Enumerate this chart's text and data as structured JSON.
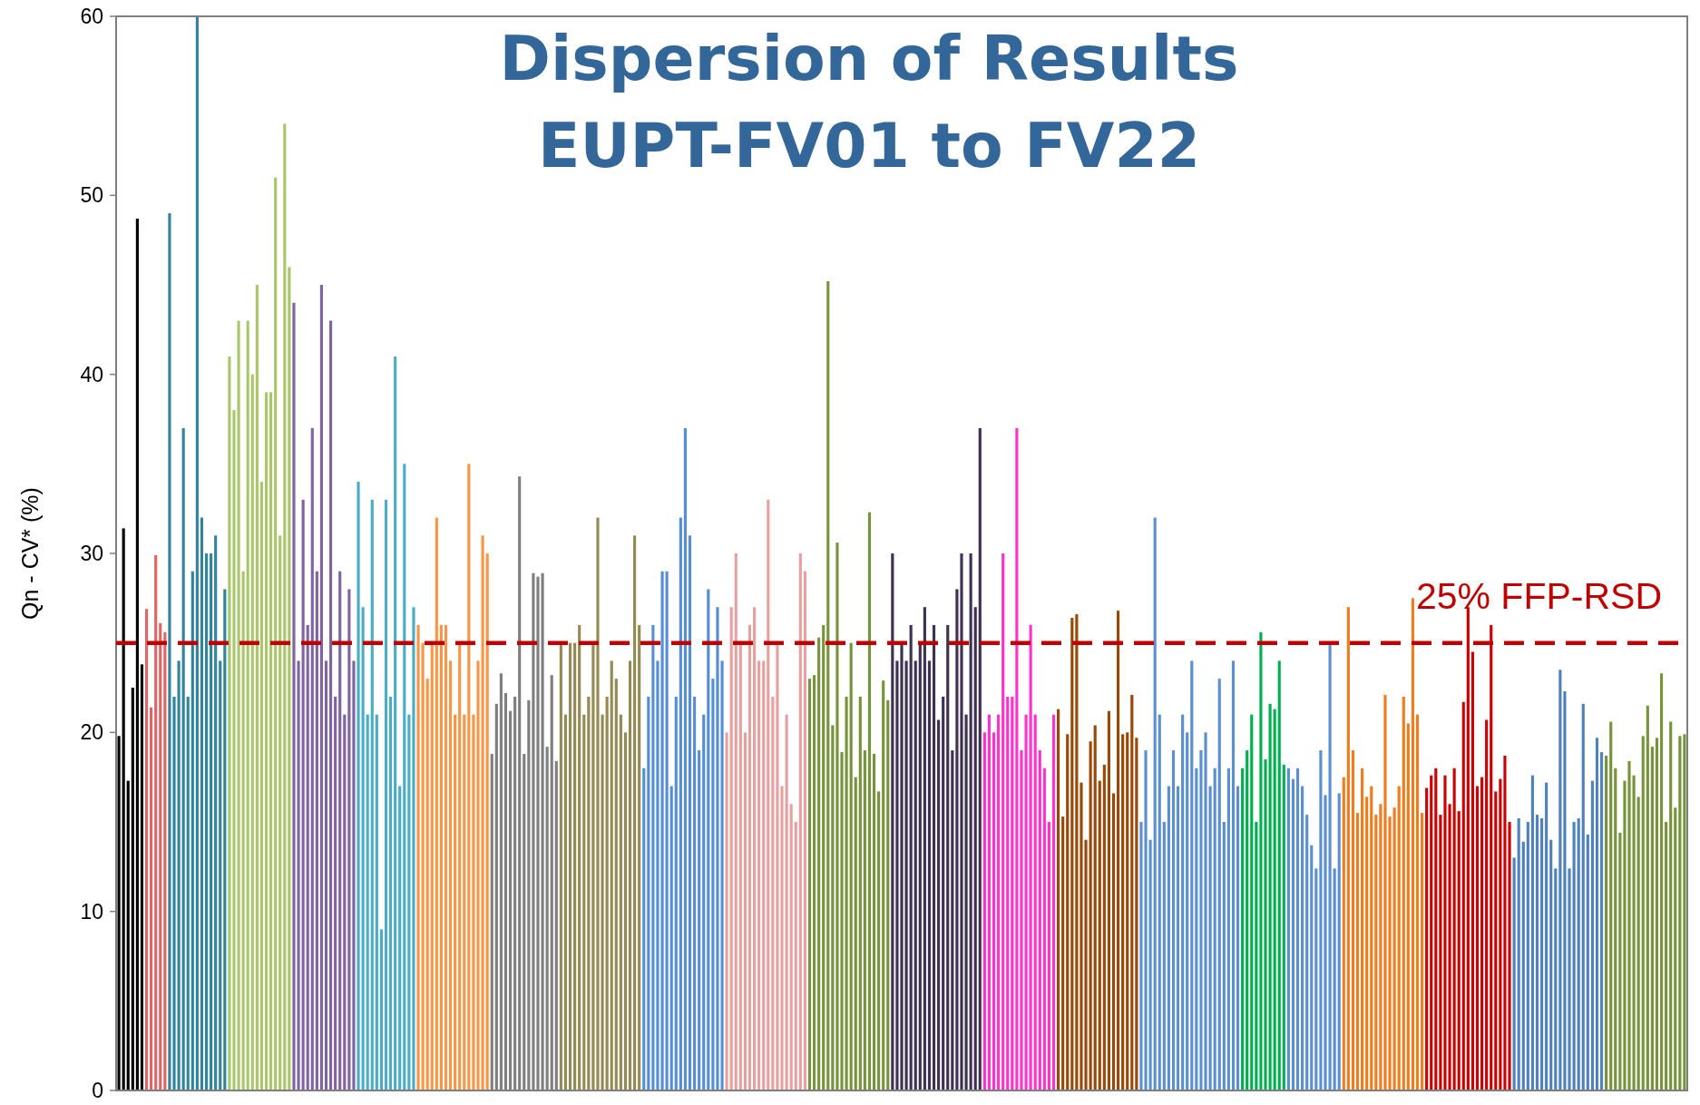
{
  "chart_data": {
    "type": "bar",
    "title": "Dispersion of Results\nEUPT-FV01 to FV22",
    "ylabel": "Qn - CV* (%)",
    "ylim": [
      0,
      60
    ],
    "yticks": [
      0,
      10,
      20,
      30,
      40,
      50,
      60
    ],
    "grid": false,
    "categories": [
      null,
      null,
      null,
      null,
      null,
      null,
      null,
      null,
      null,
      null,
      null,
      null,
      null,
      null,
      null,
      null,
      null,
      null,
      null,
      null,
      null,
      null,
      null,
      null,
      null,
      null,
      null,
      null,
      null,
      null,
      null,
      null,
      null,
      null,
      null,
      null,
      null,
      null,
      null,
      null,
      null,
      null,
      null,
      null,
      null,
      null,
      null,
      null,
      null,
      null,
      null,
      null,
      null,
      null,
      null,
      null,
      null,
      null,
      null,
      null,
      null,
      null,
      null,
      null,
      null,
      null,
      null,
      null,
      null,
      null,
      null,
      null,
      null,
      null,
      null,
      null,
      null,
      null,
      null,
      null,
      null,
      null,
      null,
      null,
      null,
      null,
      null,
      null,
      null,
      null,
      null,
      null,
      null,
      null,
      null,
      null,
      null,
      null,
      null,
      null,
      null,
      null,
      null,
      null,
      null,
      null,
      null,
      null,
      null,
      null,
      null,
      null,
      null,
      null,
      null,
      null,
      null,
      null,
      null,
      null,
      null,
      null,
      null,
      null,
      null,
      null,
      null,
      null,
      null,
      null,
      null,
      null,
      null,
      null,
      null,
      null,
      null,
      null,
      null,
      null,
      null,
      null,
      null,
      null,
      null,
      null,
      null,
      null,
      null,
      null,
      null,
      null,
      null,
      null,
      null,
      null,
      null,
      null,
      null,
      null,
      null,
      null,
      null,
      null,
      null,
      null,
      null,
      null,
      null,
      null,
      null,
      null,
      null,
      null,
      null,
      null,
      null,
      null,
      null,
      null,
      null,
      null,
      null,
      null,
      null,
      null,
      null,
      null,
      null,
      null,
      null,
      null,
      null,
      null,
      null,
      null,
      null,
      null,
      null,
      null,
      null,
      null,
      null,
      null,
      null,
      null,
      null,
      null,
      null,
      null,
      null,
      null,
      null,
      null,
      null,
      null,
      null,
      null,
      null,
      null,
      null,
      null,
      null,
      null,
      null,
      null,
      null,
      null,
      null,
      null,
      null,
      null,
      null,
      null,
      null,
      null,
      null,
      null,
      null,
      null,
      null,
      null,
      null,
      null,
      null,
      null,
      null,
      null,
      null,
      null,
      null,
      null,
      null,
      null,
      null,
      null,
      null,
      null,
      null,
      null,
      null,
      null,
      null,
      null,
      null,
      null,
      null,
      null,
      null,
      null,
      null,
      null,
      null,
      null,
      null,
      null,
      null,
      null,
      null,
      null,
      null,
      null,
      null,
      null,
      null,
      null,
      null,
      null,
      null,
      null,
      null,
      null,
      null,
      null,
      null,
      null,
      null,
      null,
      null,
      null,
      null,
      null,
      null,
      null,
      null,
      null,
      null,
      null,
      null,
      null,
      null,
      null,
      null,
      null,
      null,
      null,
      null,
      null,
      null,
      null,
      null,
      null,
      null,
      null,
      null,
      null,
      null,
      null,
      null,
      null,
      null,
      null,
      null,
      null,
      null,
      null,
      null,
      null,
      null,
      null,
      null
    ],
    "values": [
      19.8,
      31.4,
      17.3,
      22.5,
      48.7,
      23.8,
      26.9,
      21.4,
      29.9,
      26.1,
      25.6,
      49,
      22,
      24,
      37,
      22,
      29,
      60,
      32,
      30,
      30,
      31,
      24,
      28,
      41,
      38,
      43,
      29,
      43,
      40,
      45,
      34,
      39,
      39,
      51,
      31,
      54,
      46,
      44,
      24,
      33,
      26,
      37,
      29,
      45,
      24,
      43,
      22,
      29,
      21,
      28,
      24,
      34,
      27,
      21,
      33,
      21,
      9,
      33,
      22,
      41,
      17,
      35,
      21,
      27,
      26,
      25,
      23,
      25,
      32,
      26,
      26,
      24,
      21,
      25,
      21,
      35,
      21,
      24,
      31,
      30,
      18.8,
      21.6,
      23.3,
      22.2,
      21.2,
      22,
      34.3,
      18.8,
      21.8,
      28.9,
      28.7,
      28.9,
      19.2,
      23.2,
      18.4,
      25,
      21,
      25,
      25,
      26,
      21,
      22,
      25,
      32,
      21,
      22,
      24,
      23,
      21,
      20,
      24,
      31,
      26,
      18,
      22,
      26,
      24,
      29,
      29,
      17,
      22,
      32,
      37,
      31,
      22,
      19,
      21,
      28,
      23,
      27,
      24,
      20,
      27,
      30,
      25,
      20,
      26,
      27,
      24,
      24,
      33,
      22,
      25,
      17,
      21,
      16,
      15,
      30,
      29,
      23,
      23.2,
      25.3,
      26,
      45.2,
      20.4,
      30.6,
      18.9,
      22,
      25,
      17.5,
      22,
      19,
      32.3,
      18.8,
      16.7,
      22.9,
      21.8,
      30,
      24,
      25,
      24,
      26,
      24,
      25,
      27,
      24,
      26,
      20.7,
      22,
      26,
      19,
      28,
      30,
      21,
      30,
      27,
      37,
      20,
      21,
      20,
      21,
      30,
      22,
      22,
      37,
      19,
      21,
      26,
      21,
      19,
      18,
      15,
      21,
      21.3,
      15.3,
      19.9,
      26.4,
      26.6,
      17.2,
      14,
      19.5,
      20.4,
      17.3,
      18.2,
      21.2,
      16.6,
      26.8,
      19.9,
      20,
      22.1,
      19.7,
      15,
      19,
      14,
      32,
      21,
      15,
      17,
      19,
      17,
      21,
      20,
      24,
      18,
      19,
      20,
      17,
      18,
      23,
      15,
      18,
      24,
      17,
      18,
      19,
      21,
      15,
      25.6,
      18.5,
      21.6,
      21.3,
      24,
      18.2,
      18,
      17.4,
      18,
      17,
      15.4,
      13.7,
      12.4,
      19,
      16.5,
      25,
      12.4,
      16.6,
      17.5,
      27,
      19,
      15.5,
      18,
      16.4,
      17,
      15.4,
      16,
      22.1,
      15.3,
      15.8,
      17,
      22,
      20.5,
      27.5,
      21,
      15.5,
      16.9,
      17.6,
      18,
      15.4,
      17.6,
      16,
      18,
      15.6,
      21.7,
      27,
      24.5,
      17,
      17.5,
      20.7,
      26,
      16.7,
      17.4,
      18.7,
      15,
      13,
      15.2,
      13.9,
      15,
      17.6,
      15.4,
      15.2,
      17.2,
      14,
      12.4,
      23.5,
      22.3,
      12.4,
      15,
      15.2,
      21.6,
      14.3,
      17.3,
      19.7,
      18.9,
      18.7,
      20.6,
      18,
      14.4,
      17.3,
      18.4,
      17.6,
      16.4,
      19.8,
      21.5,
      19.2,
      19.7,
      23.3,
      15,
      20.6,
      15.8,
      19.8,
      19.9
    ],
    "colors": [
      "#000000",
      "#000000",
      "#000000",
      "#000000",
      "#000000",
      "#000000",
      "#e06666",
      "#e06666",
      "#e06666",
      "#e06666",
      "#e06666",
      "#31849b",
      "#31849b",
      "#31849b",
      "#31849b",
      "#31849b",
      "#31849b",
      "#31849b",
      "#31849b",
      "#31849b",
      "#31849b",
      "#31849b",
      "#31849b",
      "#31849b",
      "#a9c76a",
      "#a9c76a",
      "#a9c76a",
      "#a9c76a",
      "#a9c76a",
      "#a9c76a",
      "#a9c76a",
      "#a9c76a",
      "#a9c76a",
      "#a9c76a",
      "#a9c76a",
      "#a9c76a",
      "#a9c76a",
      "#a9c76a",
      "#8064a2",
      "#8064a2",
      "#8064a2",
      "#8064a2",
      "#8064a2",
      "#8064a2",
      "#8064a2",
      "#8064a2",
      "#8064a2",
      "#8064a2",
      "#8064a2",
      "#8064a2",
      "#8064a2",
      "#8064a2",
      "#4bacc6",
      "#4bacc6",
      "#4bacc6",
      "#4bacc6",
      "#4bacc6",
      "#4bacc6",
      "#4bacc6",
      "#4bacc6",
      "#4bacc6",
      "#4bacc6",
      "#4bacc6",
      "#4bacc6",
      "#4bacc6",
      "#f79646",
      "#f79646",
      "#f79646",
      "#f79646",
      "#f79646",
      "#f79646",
      "#f79646",
      "#f79646",
      "#f79646",
      "#f79646",
      "#f79646",
      "#f79646",
      "#f79646",
      "#f79646",
      "#f79646",
      "#f79646",
      "#7f7f7f",
      "#7f7f7f",
      "#7f7f7f",
      "#7f7f7f",
      "#7f7f7f",
      "#7f7f7f",
      "#7f7f7f",
      "#7f7f7f",
      "#7f7f7f",
      "#7f7f7f",
      "#7f7f7f",
      "#7f7f7f",
      "#7f7f7f",
      "#7f7f7f",
      "#7f7f7f",
      "#948a54",
      "#948a54",
      "#948a54",
      "#948a54",
      "#948a54",
      "#948a54",
      "#948a54",
      "#948a54",
      "#948a54",
      "#948a54",
      "#948a54",
      "#948a54",
      "#948a54",
      "#948a54",
      "#948a54",
      "#948a54",
      "#948a54",
      "#948a54",
      "#558ed5",
      "#558ed5",
      "#558ed5",
      "#558ed5",
      "#558ed5",
      "#558ed5",
      "#558ed5",
      "#558ed5",
      "#558ed5",
      "#558ed5",
      "#558ed5",
      "#558ed5",
      "#558ed5",
      "#558ed5",
      "#558ed5",
      "#558ed5",
      "#558ed5",
      "#558ed5",
      "#e6a0a0",
      "#e6a0a0",
      "#e6a0a0",
      "#e6a0a0",
      "#e6a0a0",
      "#e6a0a0",
      "#e6a0a0",
      "#e6a0a0",
      "#e6a0a0",
      "#e6a0a0",
      "#e6a0a0",
      "#e6a0a0",
      "#e6a0a0",
      "#e6a0a0",
      "#e6a0a0",
      "#e6a0a0",
      "#e6a0a0",
      "#e6a0a0",
      "#77933c",
      "#77933c",
      "#77933c",
      "#77933c",
      "#77933c",
      "#77933c",
      "#77933c",
      "#77933c",
      "#77933c",
      "#77933c",
      "#77933c",
      "#77933c",
      "#77933c",
      "#77933c",
      "#77933c",
      "#77933c",
      "#77933c",
      "#77933c",
      "#3f3151",
      "#3f3151",
      "#3f3151",
      "#3f3151",
      "#3f3151",
      "#3f3151",
      "#3f3151",
      "#3f3151",
      "#3f3151",
      "#3f3151",
      "#3f3151",
      "#3f3151",
      "#3f3151",
      "#3f3151",
      "#3f3151",
      "#3f3151",
      "#3f3151",
      "#3f3151",
      "#3f3151",
      "#3f3151",
      "#ff33cc",
      "#ff33cc",
      "#ff33cc",
      "#ff33cc",
      "#ff33cc",
      "#ff33cc",
      "#ff33cc",
      "#ff33cc",
      "#ff33cc",
      "#ff33cc",
      "#ff33cc",
      "#ff33cc",
      "#ff33cc",
      "#ff33cc",
      "#ff33cc",
      "#ff33cc",
      "#984807",
      "#984807",
      "#984807",
      "#984807",
      "#984807",
      "#984807",
      "#984807",
      "#984807",
      "#984807",
      "#984807",
      "#984807",
      "#984807",
      "#984807",
      "#984807",
      "#984807",
      "#984807",
      "#984807",
      "#984807",
      "#5b8fd0",
      "#5b8fd0",
      "#5b8fd0",
      "#5b8fd0",
      "#5b8fd0",
      "#5b8fd0",
      "#5b8fd0",
      "#5b8fd0",
      "#5b8fd0",
      "#5b8fd0",
      "#5b8fd0",
      "#5b8fd0",
      "#5b8fd0",
      "#5b8fd0",
      "#5b8fd0",
      "#5b8fd0",
      "#5b8fd0",
      "#5b8fd0",
      "#5b8fd0",
      "#5b8fd0",
      "#5b8fd0",
      "#5b8fd0",
      "#00b050",
      "#00b050",
      "#00b050",
      "#00b050",
      "#00b050",
      "#00b050",
      "#00b050",
      "#00b050",
      "#00b050",
      "#00b050",
      "#5b8fd0",
      "#5b8fd0",
      "#5b8fd0",
      "#5b8fd0",
      "#5b8fd0",
      "#5b8fd0",
      "#5b8fd0",
      "#5b8fd0",
      "#5b8fd0",
      "#5b8fd0",
      "#5b8fd0",
      "#5b8fd0",
      "#f07c1e",
      "#f07c1e",
      "#f07c1e",
      "#f07c1e",
      "#f07c1e",
      "#f07c1e",
      "#f07c1e",
      "#f07c1e",
      "#f07c1e",
      "#f07c1e",
      "#f07c1e",
      "#f07c1e",
      "#f07c1e",
      "#f07c1e",
      "#f07c1e",
      "#f07c1e",
      "#f07c1e",
      "#f07c1e",
      "#cc0000",
      "#cc0000",
      "#cc0000",
      "#cc0000",
      "#cc0000",
      "#cc0000",
      "#cc0000",
      "#cc0000",
      "#cc0000",
      "#cc0000",
      "#cc0000",
      "#cc0000",
      "#cc0000",
      "#cc0000",
      "#cc0000",
      "#cc0000",
      "#cc0000",
      "#cc0000",
      "#cc0000",
      "#4f81bd",
      "#4f81bd",
      "#4f81bd",
      "#4f81bd",
      "#4f81bd",
      "#4f81bd",
      "#4f81bd",
      "#4f81bd",
      "#4f81bd",
      "#4f81bd",
      "#4f81bd",
      "#4f81bd",
      "#4f81bd",
      "#4f81bd",
      "#4f81bd",
      "#4f81bd",
      "#4f81bd",
      "#4f81bd",
      "#4f81bd",
      "#4f81bd",
      "#77933c",
      "#77933c",
      "#77933c",
      "#77933c",
      "#77933c",
      "#77933c",
      "#77933c",
      "#77933c",
      "#77933c",
      "#77933c",
      "#77933c",
      "#77933c",
      "#77933c",
      "#77933c",
      "#77933c",
      "#77933c",
      "#77933c",
      "#77933c"
    ],
    "ref_lines": [
      {
        "axis": "y",
        "value": 25,
        "label": "25% FFP-RSD",
        "color": "#c00000",
        "line_style": "dashed"
      }
    ]
  }
}
